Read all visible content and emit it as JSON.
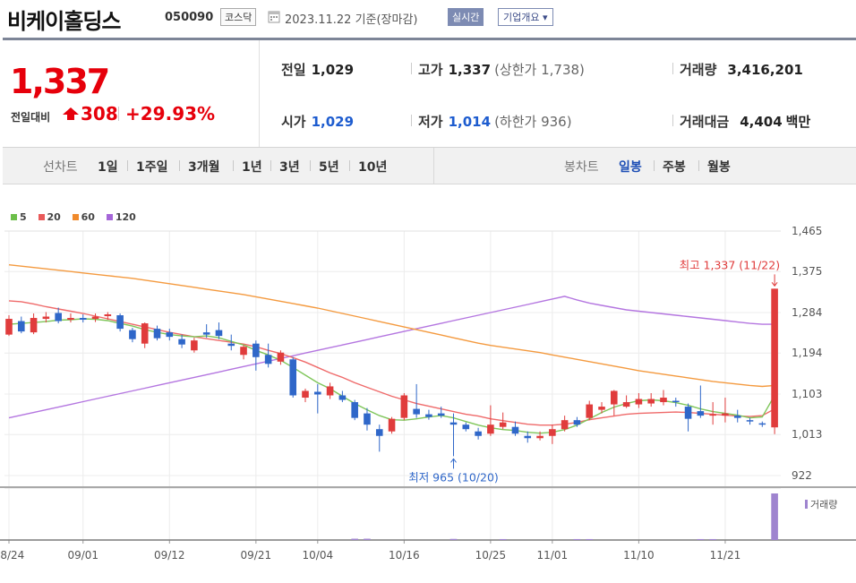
{
  "header": {
    "name": "비케이홀딩스",
    "code": "050090",
    "market": "코스닥",
    "date": "2023.11.22 기준(장마감)",
    "live_button": "실시간",
    "company_button": "기업개요 ▾"
  },
  "quote": {
    "price": "1,337",
    "diff_label": "전일대비",
    "diff": "308",
    "rate": "+29.93%",
    "prev_close_label": "전일",
    "prev_close": "1,029",
    "open_label": "시가",
    "open": "1,029",
    "high_label": "고가",
    "high": "1,337",
    "upper_limit": "(상한가 1,738)",
    "low_label": "저가",
    "low": "1,014",
    "lower_limit": "(하한가 936)",
    "volume_label": "거래량",
    "volume": "3,416,201",
    "amount_label": "거래대금",
    "amount": "4,404",
    "amount_unit": "백만"
  },
  "periods": {
    "line_label": "선차트",
    "line_items": [
      "1일",
      "1주일",
      "3개월",
      "1년",
      "3년",
      "5년",
      "10년"
    ],
    "candle_label": "봉차트",
    "candle_items": [
      "일봉",
      "주봉",
      "월봉"
    ],
    "candle_active": "일봉"
  },
  "colors": {
    "up": "#e03c3c",
    "down": "#2f67c9",
    "ma5": "#7fc65a",
    "ma20": "#ef6a6a",
    "ma60": "#f49a3f",
    "ma120": "#b476e0",
    "volume": "#9f84cf"
  },
  "chart_data": {
    "type": "candlestick",
    "legend": [
      "5",
      "20",
      "60",
      "120"
    ],
    "volume_legend": "거래량",
    "y_ticks": [
      "1,465",
      "1,375",
      "1,284",
      "1,194",
      "1,103",
      "1,013",
      "922"
    ],
    "ylim": [
      922,
      1465
    ],
    "x_labels": [
      {
        "label": "08/24",
        "i": 0
      },
      {
        "label": "09/01",
        "i": 6
      },
      {
        "label": "09/12",
        "i": 13
      },
      {
        "label": "09/21",
        "i": 20
      },
      {
        "label": "10/04",
        "i": 25
      },
      {
        "label": "10/16",
        "i": 32
      },
      {
        "label": "10/25",
        "i": 39
      },
      {
        "label": "11/01",
        "i": 44
      },
      {
        "label": "11/10",
        "i": 51
      },
      {
        "label": "11/21",
        "i": 58
      }
    ],
    "annotations": {
      "high": "최고 1,337 (11/22)",
      "high_value": 1337,
      "low": "최저 965 (10/20)",
      "low_value": 965,
      "low_index": 36
    },
    "candles": [
      [
        1235,
        1270,
        1278,
        1232
      ],
      [
        1265,
        1242,
        1275,
        1238
      ],
      [
        1240,
        1272,
        1282,
        1236
      ],
      [
        1270,
        1275,
        1285,
        1262
      ],
      [
        1283,
        1265,
        1295,
        1260
      ],
      [
        1268,
        1272,
        1282,
        1262
      ],
      [
        1272,
        1268,
        1280,
        1262
      ],
      [
        1270,
        1275,
        1282,
        1263
      ],
      [
        1276,
        1280,
        1285,
        1268
      ],
      [
        1278,
        1248,
        1282,
        1242
      ],
      [
        1245,
        1225,
        1250,
        1218
      ],
      [
        1215,
        1260,
        1262,
        1205
      ],
      [
        1248,
        1227,
        1255,
        1222
      ],
      [
        1240,
        1230,
        1248,
        1222
      ],
      [
        1225,
        1213,
        1235,
        1205
      ],
      [
        1200,
        1222,
        1228,
        1195
      ],
      [
        1240,
        1235,
        1258,
        1228
      ],
      [
        1245,
        1232,
        1262,
        1225
      ],
      [
        1215,
        1210,
        1235,
        1200
      ],
      [
        1190,
        1208,
        1212,
        1180
      ],
      [
        1215,
        1185,
        1222,
        1155
      ],
      [
        1190,
        1170,
        1215,
        1162
      ],
      [
        1175,
        1195,
        1200,
        1168
      ],
      [
        1180,
        1100,
        1185,
        1095
      ],
      [
        1095,
        1110,
        1115,
        1085
      ],
      [
        1108,
        1102,
        1125,
        1060
      ],
      [
        1100,
        1120,
        1128,
        1092
      ],
      [
        1100,
        1090,
        1110,
        1085
      ],
      [
        1085,
        1050,
        1090,
        1045
      ],
      [
        1060,
        1035,
        1072,
        1022
      ],
      [
        1025,
        1010,
        1035,
        975
      ],
      [
        1020,
        1048,
        1052,
        1015
      ],
      [
        1050,
        1100,
        1105,
        1045
      ],
      [
        1070,
        1058,
        1125,
        1050
      ],
      [
        1058,
        1052,
        1068,
        1046
      ],
      [
        1060,
        1055,
        1075,
        1050
      ],
      [
        1040,
        1035,
        1060,
        965
      ],
      [
        1035,
        1025,
        1040,
        1020
      ],
      [
        1020,
        1010,
        1028,
        1002
      ],
      [
        1015,
        1035,
        1078,
        1010
      ],
      [
        1030,
        1040,
        1062,
        1025
      ],
      [
        1030,
        1015,
        1042,
        1010
      ],
      [
        1010,
        1005,
        1020,
        995
      ],
      [
        1005,
        1010,
        1020,
        1000
      ],
      [
        1010,
        1025,
        1035,
        992
      ],
      [
        1025,
        1045,
        1055,
        1020
      ],
      [
        1045,
        1035,
        1052,
        1030
      ],
      [
        1050,
        1080,
        1088,
        1045
      ],
      [
        1068,
        1075,
        1085,
        1060
      ],
      [
        1080,
        1110,
        1112,
        1055
      ],
      [
        1075,
        1085,
        1100,
        1072
      ],
      [
        1080,
        1092,
        1105,
        1072
      ],
      [
        1082,
        1092,
        1105,
        1075
      ],
      [
        1085,
        1095,
        1112,
        1078
      ],
      [
        1088,
        1085,
        1095,
        1075
      ],
      [
        1075,
        1048,
        1082,
        1020
      ],
      [
        1065,
        1055,
        1122,
        1050
      ],
      [
        1055,
        1058,
        1085,
        1035
      ],
      [
        1055,
        1060,
        1095,
        1040
      ],
      [
        1055,
        1050,
        1068,
        1040
      ],
      [
        1045,
        1042,
        1050,
        1035
      ],
      [
        1038,
        1037,
        1042,
        1030
      ],
      [
        1029,
        1337,
        1337,
        1014
      ]
    ],
    "ma": {
      "ma5": [
        1258,
        1260,
        1262,
        1264,
        1267,
        1268,
        1270,
        1269,
        1266,
        1260,
        1254,
        1246,
        1240,
        1235,
        1232,
        1230,
        1232,
        1228,
        1220,
        1212,
        1200,
        1190,
        1178,
        1162,
        1145,
        1128,
        1115,
        1098,
        1082,
        1068,
        1055,
        1046,
        1045,
        1048,
        1052,
        1055,
        1050,
        1042,
        1034,
        1028,
        1024,
        1022,
        1018,
        1016,
        1018,
        1024,
        1034,
        1048,
        1062,
        1074,
        1082,
        1088,
        1090,
        1088,
        1084,
        1078,
        1070,
        1064,
        1060,
        1056,
        1050,
        1052,
        1100
      ],
      "ma20": [
        1310,
        1308,
        1303,
        1297,
        1292,
        1287,
        1282,
        1276,
        1270,
        1264,
        1258,
        1252,
        1246,
        1240,
        1235,
        1230,
        1226,
        1222,
        1218,
        1214,
        1208,
        1200,
        1193,
        1184,
        1174,
        1162,
        1150,
        1140,
        1128,
        1118,
        1108,
        1098,
        1090,
        1082,
        1076,
        1070,
        1064,
        1058,
        1054,
        1048,
        1044,
        1040,
        1036,
        1034,
        1034,
        1036,
        1040,
        1046,
        1050,
        1054,
        1058,
        1060,
        1061,
        1062,
        1063,
        1062,
        1060,
        1058,
        1056,
        1054,
        1053,
        1055,
        1070
      ],
      "ma60": [
        1390,
        1387,
        1384,
        1381,
        1378,
        1375,
        1372,
        1369,
        1366,
        1363,
        1360,
        1356,
        1352,
        1348,
        1344,
        1340,
        1336,
        1332,
        1328,
        1324,
        1319,
        1314,
        1309,
        1304,
        1299,
        1294,
        1288,
        1282,
        1276,
        1270,
        1264,
        1258,
        1252,
        1246,
        1240,
        1234,
        1228,
        1222,
        1216,
        1211,
        1207,
        1203,
        1199,
        1195,
        1190,
        1185,
        1180,
        1175,
        1170,
        1165,
        1160,
        1155,
        1151,
        1147,
        1143,
        1139,
        1135,
        1131,
        1128,
        1125,
        1122,
        1120,
        1122
      ],
      "ma120": [
        1050,
        1056,
        1062,
        1068,
        1074,
        1080,
        1086,
        1092,
        1098,
        1104,
        1110,
        1116,
        1122,
        1128,
        1134,
        1140,
        1146,
        1152,
        1158,
        1164,
        1170,
        1176,
        1182,
        1188,
        1194,
        1200,
        1206,
        1212,
        1218,
        1224,
        1230,
        1236,
        1242,
        1248,
        1254,
        1260,
        1266,
        1272,
        1278,
        1284,
        1290,
        1296,
        1302,
        1308,
        1314,
        1320,
        1312,
        1305,
        1300,
        1295,
        1290,
        1287,
        1284,
        1281,
        1278,
        1275,
        1272,
        1269,
        1266,
        1263,
        1260,
        1258,
        1258
      ]
    },
    "volume": [
      0,
      0,
      0,
      0,
      0,
      0,
      0,
      0,
      0,
      0,
      0,
      0,
      0,
      0,
      0,
      0,
      0,
      0,
      0,
      0,
      0,
      0,
      0,
      0,
      0,
      0,
      0,
      0,
      1.4,
      1.4,
      0,
      0,
      0,
      0,
      0,
      0,
      1.2,
      0,
      0,
      0,
      1.0,
      0,
      0,
      0,
      0,
      0,
      1.0,
      1.0,
      0,
      0,
      0,
      0,
      0,
      0,
      0,
      0,
      1.0,
      1.0,
      0,
      0,
      0,
      0,
      50
    ]
  }
}
